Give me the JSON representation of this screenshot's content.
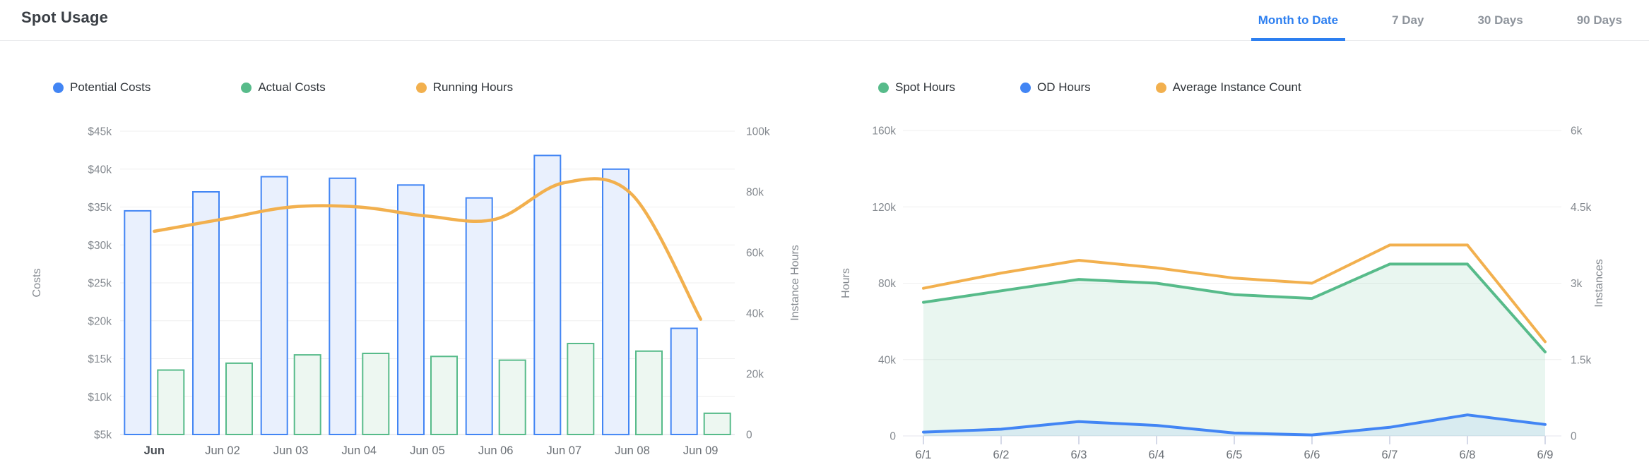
{
  "header": {
    "title": "Spot Usage",
    "tabs": [
      {
        "label": "Month to Date",
        "active": true
      },
      {
        "label": "7 Day",
        "active": false
      },
      {
        "label": "30 Days",
        "active": false
      },
      {
        "label": "90 Days",
        "active": false
      }
    ]
  },
  "colors": {
    "blue": "#4285F4",
    "green": "#57BB8A",
    "orange": "#F2B04E",
    "blue_fill": "#E9F0FD",
    "green_fill": "#EDF7F1",
    "grid": "#efefef",
    "axis_line": "#e4e6ec",
    "tick_text": "#84898f",
    "x_text": "#6b7076",
    "x_text_strong": "#4a4f55"
  },
  "chart_data": [
    {
      "kind": "combo",
      "type": "bar",
      "title": "",
      "categories": [
        "Jun",
        "Jun 02",
        "Jun 03",
        "Jun 04",
        "Jun 05",
        "Jun 06",
        "Jun 07",
        "Jun 08",
        "Jun 09"
      ],
      "first_category_strong": true,
      "series": [
        {
          "name": "Potential Costs",
          "type": "bar",
          "axis": "left",
          "color": "#4285F4",
          "fill": "#E9F0FD",
          "values": [
            34500,
            37000,
            39000,
            38800,
            37900,
            36200,
            41800,
            40000,
            19000
          ]
        },
        {
          "name": "Actual Costs",
          "type": "bar",
          "axis": "left",
          "color": "#57BB8A",
          "fill": "#EDF7F1",
          "values": [
            13500,
            14400,
            15500,
            15700,
            15300,
            14800,
            17000,
            16000,
            7800
          ]
        },
        {
          "name": "Running Hours",
          "type": "line",
          "axis": "right",
          "color": "#F2B04E",
          "values": [
            67000,
            71000,
            75000,
            75000,
            72000,
            71000,
            83000,
            79000,
            38000
          ]
        }
      ],
      "left_axis": {
        "title": "Costs",
        "min": 5000,
        "max": 45000,
        "ticks": [
          {
            "v": 5000,
            "label": "$5k"
          },
          {
            "v": 10000,
            "label": "$10k"
          },
          {
            "v": 15000,
            "label": "$15k"
          },
          {
            "v": 20000,
            "label": "$20k"
          },
          {
            "v": 25000,
            "label": "$25k"
          },
          {
            "v": 30000,
            "label": "$30k"
          },
          {
            "v": 35000,
            "label": "$35k"
          },
          {
            "v": 40000,
            "label": "$40k"
          },
          {
            "v": 45000,
            "label": "$45k"
          }
        ]
      },
      "right_axis": {
        "title": "Instance Hours",
        "min": 0,
        "max": 100000,
        "ticks": [
          {
            "v": 0,
            "label": "0"
          },
          {
            "v": 20000,
            "label": "20k"
          },
          {
            "v": 40000,
            "label": "40k"
          },
          {
            "v": 60000,
            "label": "60k"
          },
          {
            "v": 80000,
            "label": "80k"
          },
          {
            "v": 100000,
            "label": "100k"
          }
        ]
      },
      "grid": true,
      "legend_position": "top"
    },
    {
      "kind": "area",
      "type": "area",
      "title": "",
      "categories": [
        "6/1",
        "6/2",
        "6/3",
        "6/4",
        "6/5",
        "6/6",
        "6/7",
        "6/8",
        "6/9"
      ],
      "first_category_strong": false,
      "series": [
        {
          "name": "Spot Hours",
          "type": "area",
          "axis": "left",
          "color": "#57BB8A",
          "fill": "rgba(87,187,138,0.13)",
          "values": [
            70000,
            76000,
            82000,
            80000,
            74000,
            72000,
            90000,
            90000,
            44000
          ]
        },
        {
          "name": "OD Hours",
          "type": "area",
          "axis": "left",
          "color": "#4285F4",
          "fill": "rgba(66,133,244,0.10)",
          "values": [
            2000,
            3500,
            7500,
            5500,
            1500,
            500,
            4500,
            11000,
            6000
          ]
        },
        {
          "name": "Average Instance Count",
          "type": "line",
          "axis": "right",
          "color": "#F2B04E",
          "values": [
            2900,
            3200,
            3450,
            3300,
            3100,
            3000,
            3750,
            3750,
            1850
          ]
        }
      ],
      "left_axis": {
        "title": "Hours",
        "min": 0,
        "max": 160000,
        "ticks": [
          {
            "v": 0,
            "label": "0"
          },
          {
            "v": 40000,
            "label": "40k"
          },
          {
            "v": 80000,
            "label": "80k"
          },
          {
            "v": 120000,
            "label": "120k"
          },
          {
            "v": 160000,
            "label": "160k"
          }
        ]
      },
      "right_axis": {
        "title": "Instances",
        "min": 0,
        "max": 6000,
        "ticks": [
          {
            "v": 0,
            "label": "0"
          },
          {
            "v": 1500,
            "label": "1.5k"
          },
          {
            "v": 3000,
            "label": "3k"
          },
          {
            "v": 4500,
            "label": "4.5k"
          },
          {
            "v": 6000,
            "label": "6k"
          }
        ]
      },
      "grid": true,
      "legend_position": "top"
    }
  ]
}
